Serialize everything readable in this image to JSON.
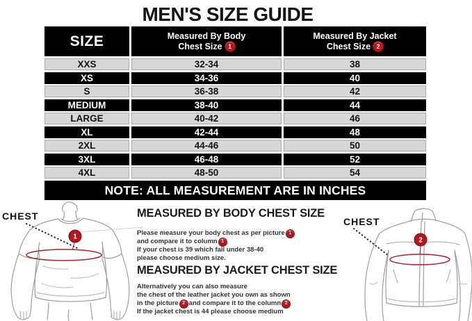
{
  "title": "MEN'S SIZE GUIDE",
  "colors": {
    "accent_red": "#b5161d",
    "row_light": "#d7d7d7",
    "row_dark": "#000000"
  },
  "table": {
    "size_header": "SIZE",
    "body_header_line1": "Measured By Body",
    "body_header_line2": "Chest Size",
    "body_header_badge": "1",
    "jacket_header_line1": "Measured By Jacket",
    "jacket_header_line2": "Chest Size",
    "jacket_header_badge": "2",
    "rows": [
      {
        "size": "XXS",
        "body_chest": "32-34",
        "jacket_chest": "38"
      },
      {
        "size": "XS",
        "body_chest": "34-36",
        "jacket_chest": "40"
      },
      {
        "size": "S",
        "body_chest": "36-38",
        "jacket_chest": "42"
      },
      {
        "size": "MEDIUM",
        "body_chest": "38-40",
        "jacket_chest": "44"
      },
      {
        "size": "LARGE",
        "body_chest": "40-42",
        "jacket_chest": "46"
      },
      {
        "size": "XL",
        "body_chest": "42-44",
        "jacket_chest": "48"
      },
      {
        "size": "2XL",
        "body_chest": "44-46",
        "jacket_chest": "50"
      },
      {
        "size": "3XL",
        "body_chest": "46-48",
        "jacket_chest": "52"
      },
      {
        "size": "4XL",
        "body_chest": "48-50",
        "jacket_chest": "54"
      }
    ],
    "note": "NOTE: ALL MEASUREMENT ARE IN INCHES"
  },
  "body_measure": {
    "chest_label": "CHEST",
    "figure_badge": "1",
    "heading": "MEASURED BY BODY CHEST SIZE",
    "line1_text": "Please measure your body chest as per picture",
    "line1_badge": "1",
    "line2_text": "and compare it to column",
    "line2_badge": "1",
    "line3_text": "If your chest is 39 which fall under 38-40",
    "line4_text": "please choose medium size."
  },
  "jacket_measure": {
    "chest_label": "CHEST",
    "figure_badge": "2",
    "heading": "MEASURED BY JACKET CHEST SIZE",
    "line1_text": "Alternatively you can also measure",
    "line2_text": "the chest of the leather jacket you own as shown",
    "line3_pre": "in the picture",
    "line3_badge1": "2",
    "line3_mid": "and compare it to the column",
    "line3_badge2": "2",
    "line4_text": "If the jacket chest is 44 please choose medium"
  }
}
